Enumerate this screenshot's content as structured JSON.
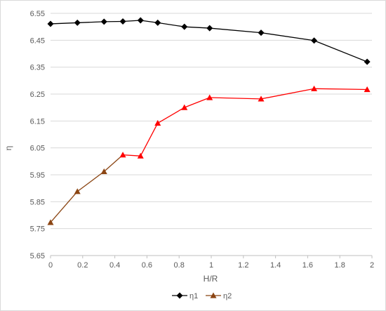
{
  "chart_data": {
    "type": "line",
    "title": "",
    "xlabel": "H/R",
    "ylabel": "η",
    "xlim": [
      0,
      2
    ],
    "ylim": [
      5.65,
      6.55
    ],
    "x_ticks": [
      "0",
      "0.2",
      "0.4",
      "0.6",
      "0.8",
      "1",
      "1.2",
      "1.4",
      "1.6",
      "1.8",
      "2"
    ],
    "y_ticks": [
      "5.65",
      "5.75",
      "5.85",
      "5.95",
      "6.05",
      "6.15",
      "6.25",
      "6.35",
      "6.45",
      "6.55"
    ],
    "grid": "horizontal",
    "legend_position": "bottom",
    "series": [
      {
        "name": "η1",
        "color": "#000000",
        "marker": "diamond",
        "x": [
          0,
          0.167,
          0.333,
          0.45,
          0.56,
          0.667,
          0.833,
          0.99,
          1.31,
          1.64,
          1.97
        ],
        "y": [
          6.511,
          6.515,
          6.519,
          6.52,
          6.524,
          6.515,
          6.5,
          6.495,
          6.478,
          6.449,
          6.37
        ]
      },
      {
        "name": "η2",
        "color": "#8B4513",
        "marker": "triangle",
        "marker_colors": [
          "#8B4513",
          "#8B4513",
          "#8B4513",
          "#ff0000",
          "#ff0000",
          "#ff0000",
          "#ff0000",
          "#ff0000",
          "#ff0000",
          "#ff0000",
          "#ff0000"
        ],
        "line_colors": [
          "#8B4513",
          "#8B4513",
          "#8B4513",
          "#ff0000",
          "#ff0000",
          "#ff0000",
          "#ff0000",
          "#ff0000",
          "#ff0000",
          "#ff0000"
        ],
        "x": [
          0,
          0.167,
          0.333,
          0.45,
          0.56,
          0.667,
          0.833,
          0.99,
          1.31,
          1.64,
          1.97
        ],
        "y": [
          5.773,
          5.888,
          5.962,
          6.024,
          6.02,
          6.142,
          6.2,
          6.237,
          6.232,
          6.27,
          6.267
        ]
      }
    ]
  }
}
